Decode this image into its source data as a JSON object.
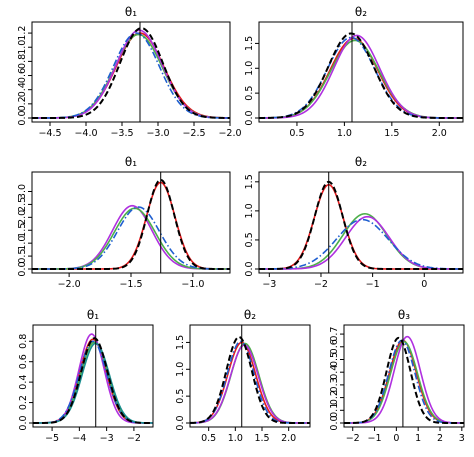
{
  "figure": {
    "colors": {
      "red": "#e41a1c",
      "green": "#4daf4a",
      "purple": "#b030e0",
      "blue": "#1f5fd0",
      "black": "#000000",
      "teal": "#1a8f8f"
    }
  },
  "chart_data": [
    {
      "type": "line",
      "title": "θ₁",
      "xlim": [
        -4.75,
        -2.0
      ],
      "ylim": [
        0,
        1.3
      ],
      "xticks": [
        -4.5,
        -4.0,
        -3.5,
        -3.0,
        -2.5,
        -2.0
      ],
      "xtick_labels": [
        "−4.5",
        "−4.0",
        "−3.5",
        "−3.0",
        "−2.5",
        "−2.0"
      ],
      "yticks": [
        0,
        0.2,
        0.4,
        0.6,
        0.8,
        1.0,
        1.2
      ],
      "ytick_labels": [
        "0.0",
        "0.2",
        "0.4",
        "0.6",
        "0.8",
        "1.0",
        "1.2"
      ],
      "vline": -3.25,
      "series": [
        {
          "color": "red",
          "dash": "solid",
          "mean": -3.25,
          "sd": 0.33,
          "peak": 1.2
        },
        {
          "color": "green",
          "dash": "solid",
          "mean": -3.27,
          "sd": 0.33,
          "peak": 1.18
        },
        {
          "color": "purple",
          "dash": "solid",
          "mean": -3.26,
          "sd": 0.32,
          "peak": 1.24
        },
        {
          "color": "blue",
          "dash": "dashdot",
          "mean": -3.3,
          "sd": 0.32,
          "peak": 1.2
        },
        {
          "color": "black",
          "dash": "dashed",
          "mean": -3.23,
          "sd": 0.3,
          "peak": 1.27
        }
      ]
    },
    {
      "type": "line",
      "title": "θ₂",
      "xlim": [
        0.1,
        2.25
      ],
      "ylim": [
        0,
        1.85
      ],
      "xticks": [
        0.5,
        1.0,
        1.5,
        2.0
      ],
      "xtick_labels": [
        "0.5",
        "1.0",
        "1.5",
        "2.0"
      ],
      "yticks": [
        0,
        0.5,
        1.0,
        1.5
      ],
      "ytick_labels": [
        "0.0",
        "0.5",
        "1.0",
        "1.5"
      ],
      "vline": 1.08,
      "series": [
        {
          "color": "red",
          "dash": "solid",
          "mean": 1.1,
          "sd": 0.25,
          "peak": 1.6
        },
        {
          "color": "green",
          "dash": "solid",
          "mean": 1.11,
          "sd": 0.255,
          "peak": 1.56
        },
        {
          "color": "purple",
          "dash": "solid",
          "mean": 1.13,
          "sd": 0.24,
          "peak": 1.66
        },
        {
          "color": "blue",
          "dash": "dashdot",
          "mean": 1.07,
          "sd": 0.25,
          "peak": 1.62
        },
        {
          "color": "black",
          "dash": "dashed",
          "mean": 1.07,
          "sd": 0.24,
          "peak": 1.7
        }
      ]
    },
    {
      "type": "line",
      "title": "θ₁",
      "xlim": [
        -2.3,
        -0.7
      ],
      "ylim": [
        0,
        3.6
      ],
      "xticks": [
        -2.0,
        -1.5,
        -1.0
      ],
      "xtick_labels": [
        "−2.0",
        "−1.5",
        "−1.0"
      ],
      "yticks": [
        0,
        0.5,
        1.0,
        1.5,
        2.0,
        2.5,
        3.0
      ],
      "ytick_labels": [
        "0.0",
        "0.5",
        "1.0",
        "1.5",
        "2.0",
        "2.5",
        "3.0"
      ],
      "vline": -1.26,
      "series": [
        {
          "color": "red",
          "dash": "solid",
          "mean": -1.26,
          "sd": 0.115,
          "peak": 3.35
        },
        {
          "color": "purple",
          "dash": "solid",
          "mean": -1.49,
          "sd": 0.16,
          "peak": 2.45
        },
        {
          "color": "green",
          "dash": "solid",
          "mean": -1.47,
          "sd": 0.165,
          "peak": 2.35
        },
        {
          "color": "blue",
          "dash": "dashdot",
          "mean": -1.44,
          "sd": 0.17,
          "peak": 2.4
        },
        {
          "color": "black",
          "dash": "dashed",
          "mean": -1.26,
          "sd": 0.11,
          "peak": 3.45
        }
      ]
    },
    {
      "type": "line",
      "title": "θ₂",
      "xlim": [
        -3.2,
        0.75
      ],
      "ylim": [
        0,
        1.6
      ],
      "xticks": [
        -3,
        -2,
        -1,
        0
      ],
      "xtick_labels": [
        "−3",
        "−2",
        "−1",
        "0"
      ],
      "yticks": [
        0,
        0.5,
        1.0,
        1.5
      ],
      "ytick_labels": [
        "0.0",
        "0.5",
        "1.0",
        "1.5"
      ],
      "vline": -1.85,
      "series": [
        {
          "color": "red",
          "dash": "solid",
          "mean": -1.85,
          "sd": 0.28,
          "peak": 1.45
        },
        {
          "color": "green",
          "dash": "solid",
          "mean": -1.15,
          "sd": 0.43,
          "peak": 0.95
        },
        {
          "color": "purple",
          "dash": "solid",
          "mean": -1.1,
          "sd": 0.42,
          "peak": 0.9
        },
        {
          "color": "blue",
          "dash": "dashdot",
          "mean": -1.2,
          "sd": 0.5,
          "peak": 0.85
        },
        {
          "color": "black",
          "dash": "dashed",
          "mean": -1.85,
          "sd": 0.27,
          "peak": 1.5
        }
      ]
    },
    {
      "type": "line",
      "title": "θ₁",
      "xlim": [
        -5.7,
        -1.3
      ],
      "ylim": [
        0,
        0.92
      ],
      "xticks": [
        -5,
        -4,
        -3,
        -2
      ],
      "xtick_labels": [
        "−5",
        "−4",
        "−3",
        "−2"
      ],
      "yticks": [
        0,
        0.2,
        0.4,
        0.6,
        0.8
      ],
      "ytick_labels": [
        "0.0",
        "0.2",
        "0.4",
        "0.6",
        "0.8"
      ],
      "vline": -3.4,
      "series": [
        {
          "color": "red",
          "dash": "solid",
          "mean": -3.5,
          "sd": 0.49,
          "peak": 0.82
        },
        {
          "color": "green",
          "dash": "solid",
          "mean": -3.45,
          "sd": 0.5,
          "peak": 0.79
        },
        {
          "color": "purple",
          "dash": "solid",
          "mean": -3.55,
          "sd": 0.46,
          "peak": 0.87
        },
        {
          "color": "blue",
          "dash": "dashdot",
          "mean": -3.5,
          "sd": 0.5,
          "peak": 0.8
        },
        {
          "color": "teal",
          "dash": "solid",
          "mean": -3.4,
          "sd": 0.5,
          "peak": 0.78
        },
        {
          "color": "black",
          "dash": "dashed",
          "mean": -3.45,
          "sd": 0.48,
          "peak": 0.83
        }
      ]
    },
    {
      "type": "line",
      "title": "θ₂",
      "xlim": [
        0.15,
        2.4
      ],
      "ylim": [
        0,
        1.75
      ],
      "xticks": [
        0.5,
        1.0,
        1.5,
        2.0
      ],
      "xtick_labels": [
        "0.5",
        "1.0",
        "1.5",
        "2.0"
      ],
      "yticks": [
        0,
        0.5,
        1.0,
        1.5
      ],
      "ytick_labels": [
        "0.0",
        "0.5",
        "1.0",
        "1.5"
      ],
      "vline": 1.12,
      "series": [
        {
          "color": "red",
          "dash": "solid",
          "mean": 1.12,
          "sd": 0.26,
          "peak": 1.5
        },
        {
          "color": "green",
          "dash": "solid",
          "mean": 1.18,
          "sd": 0.26,
          "peak": 1.48
        },
        {
          "color": "purple",
          "dash": "solid",
          "mean": 1.17,
          "sd": 0.26,
          "peak": 1.45
        },
        {
          "color": "blue",
          "dash": "dashdot",
          "mean": 1.1,
          "sd": 0.25,
          "peak": 1.52
        },
        {
          "color": "black",
          "dash": "dashed",
          "mean": 1.07,
          "sd": 0.24,
          "peak": 1.6
        }
      ]
    },
    {
      "type": "line",
      "title": "θ₃",
      "xlim": [
        -2.4,
        3.1
      ],
      "ylim": [
        0,
        0.74
      ],
      "xticks": [
        -2,
        -1,
        0,
        1,
        2,
        3
      ],
      "xtick_labels": [
        "−2",
        "−1",
        "0",
        "1",
        "2",
        "3"
      ],
      "yticks": [
        0,
        0.1,
        0.2,
        0.3,
        0.4,
        0.5,
        0.6,
        0.7
      ],
      "ytick_labels": [
        "0.0",
        "0.1",
        "0.2",
        "0.3",
        "0.4",
        "0.5",
        "0.6",
        "0.7"
      ],
      "vline": 0.3,
      "series": [
        {
          "color": "red",
          "dash": "solid",
          "mean": 0.3,
          "sd": 0.62,
          "peak": 0.65
        },
        {
          "color": "green",
          "dash": "solid",
          "mean": 0.35,
          "sd": 0.62,
          "peak": 0.64
        },
        {
          "color": "purple",
          "dash": "solid",
          "mean": 0.5,
          "sd": 0.6,
          "peak": 0.68
        },
        {
          "color": "blue",
          "dash": "dashdot",
          "mean": 0.25,
          "sd": 0.6,
          "peak": 0.65
        },
        {
          "color": "black",
          "dash": "dashed",
          "mean": 0.1,
          "sd": 0.55,
          "peak": 0.67
        }
      ]
    }
  ]
}
